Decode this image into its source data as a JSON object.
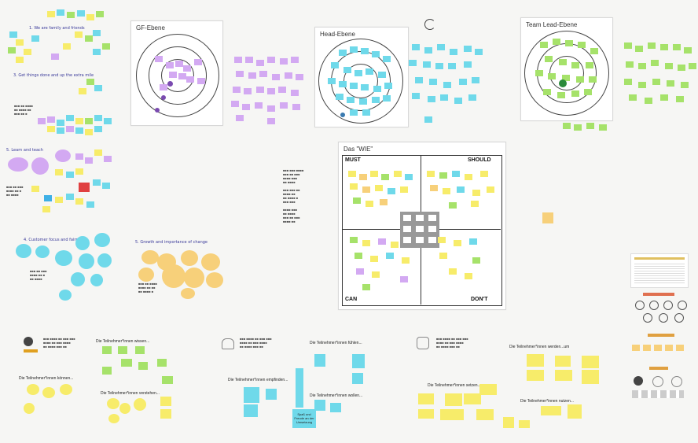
{
  "sections": {
    "s1": "1. We are family and friends",
    "s3": "3. Get things done and up the extra mile",
    "s5": "5. Learn and teach",
    "s4": "4. Customer focus and fairness",
    "s5b": "5. Growth and importance of change"
  },
  "frames": {
    "gf": "GF-Ebene",
    "head": "Head-Ebene",
    "team": "Team Lead-Ebene",
    "wie": "Das \"WIE\""
  },
  "quadrants": {
    "must": "MUST",
    "should": "SHOULD",
    "can": "CAN",
    "dont": "DON'T"
  },
  "participants": {
    "wissen": "Die Teilnehmer*innen wissen...",
    "koennen": "Die Teilnehmer*innen können...",
    "verstehen": "Die Teilnehmer*innen verstehen...",
    "fuehlen": "Die Teilnehmer*innen fühlen...",
    "empfinden": "Die Teilnehmer*innen empfinden...",
    "wollen": "Die Teilnehmer*innen wollen...",
    "werden": "Die Teilnehmer*innen werden...um",
    "setzen": "Die Teilnehmer*innen setzen...um",
    "nutzen": "Die Teilnehmer*innen nutzen..."
  },
  "notes": {
    "spass": "Spaß und Freude an der Umsetzung"
  },
  "colors": {
    "yellow": "#f7ec6a",
    "green": "#a6e26a",
    "cyan": "#6fd9ea",
    "purple": "#d3a9f2",
    "orange": "#f7d07a"
  }
}
